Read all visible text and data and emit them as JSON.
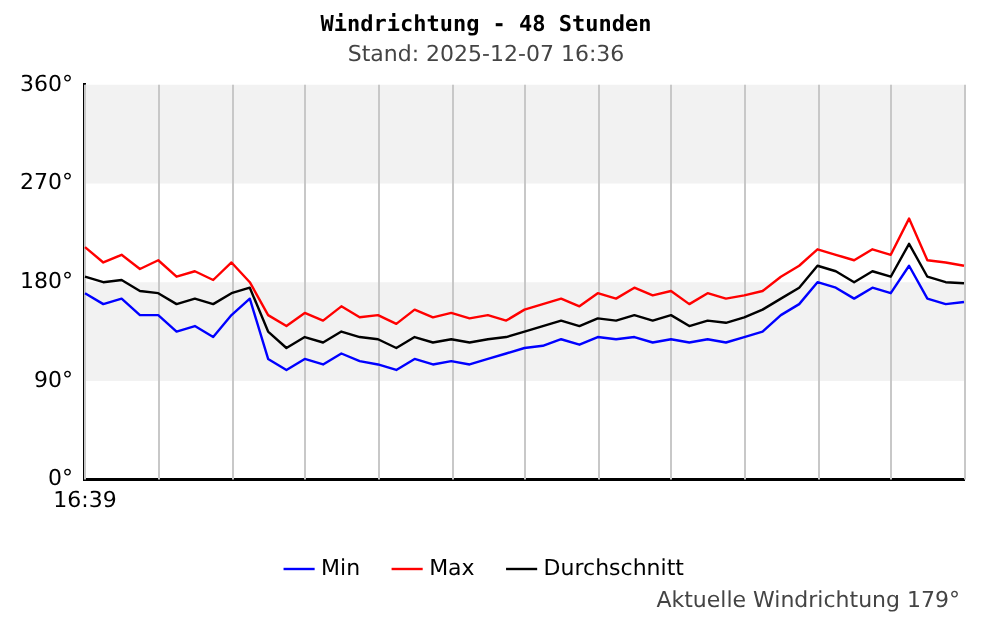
{
  "chart_data": {
    "type": "line",
    "title": "Windrichtung - 48 Stunden",
    "subtitle": "Stand: 2025-12-07 16:36",
    "categories": [
      "16:39",
      null,
      null,
      null,
      null,
      null,
      null,
      null,
      null,
      null,
      null,
      null,
      null,
      null,
      null,
      null,
      null,
      null,
      null,
      null,
      null,
      null,
      null,
      null,
      null,
      null,
      null,
      null,
      null,
      null,
      null,
      null,
      null,
      null,
      null,
      null,
      null,
      null,
      null,
      null,
      null,
      null,
      null,
      null,
      null,
      null,
      null,
      null,
      null
    ],
    "series": [
      {
        "name": "Min",
        "color": "#0000ff",
        "values": [
          170,
          160,
          165,
          150,
          150,
          135,
          140,
          130,
          150,
          165,
          110,
          100,
          110,
          105,
          115,
          108,
          105,
          100,
          110,
          105,
          108,
          105,
          110,
          115,
          120,
          122,
          128,
          123,
          130,
          128,
          130,
          125,
          128,
          125,
          128,
          125,
          130,
          135,
          150,
          160,
          180,
          175,
          165,
          175,
          170,
          195,
          165,
          160,
          162
        ]
      },
      {
        "name": "Max",
        "color": "#ff0000",
        "values": [
          212,
          198,
          205,
          192,
          200,
          185,
          190,
          182,
          198,
          180,
          150,
          140,
          152,
          145,
          158,
          148,
          150,
          142,
          155,
          148,
          152,
          147,
          150,
          145,
          155,
          160,
          165,
          158,
          170,
          165,
          175,
          168,
          172,
          160,
          170,
          165,
          168,
          172,
          185,
          195,
          210,
          205,
          200,
          210,
          205,
          238,
          200,
          198,
          195
        ]
      },
      {
        "name": "Durchschnitt",
        "color": "#000000",
        "values": [
          185,
          180,
          182,
          172,
          170,
          160,
          165,
          160,
          170,
          175,
          135,
          120,
          130,
          125,
          135,
          130,
          128,
          120,
          130,
          125,
          128,
          125,
          128,
          130,
          135,
          140,
          145,
          140,
          147,
          145,
          150,
          145,
          150,
          140,
          145,
          143,
          148,
          155,
          165,
          175,
          195,
          190,
          180,
          190,
          185,
          215,
          185,
          180,
          179
        ]
      }
    ],
    "ylim": [
      0,
      360
    ],
    "yticks": [
      {
        "value": 0,
        "label": "0°"
      },
      {
        "value": 90,
        "label": "90°"
      },
      {
        "value": 180,
        "label": "180°"
      },
      {
        "value": 270,
        "label": "270°"
      },
      {
        "value": 360,
        "label": "360°"
      }
    ],
    "bands": [
      {
        "axis": "y",
        "from": 90,
        "to": 180,
        "color": "#f2f2f2"
      },
      {
        "axis": "y",
        "from": 270,
        "to": 360,
        "color": "#f2f2f2"
      }
    ],
    "grid": "x",
    "legend": "bottom",
    "marker": "none",
    "line_style": "solid",
    "annotations": [
      "Aktuelle Windrichtung 179°"
    ]
  }
}
